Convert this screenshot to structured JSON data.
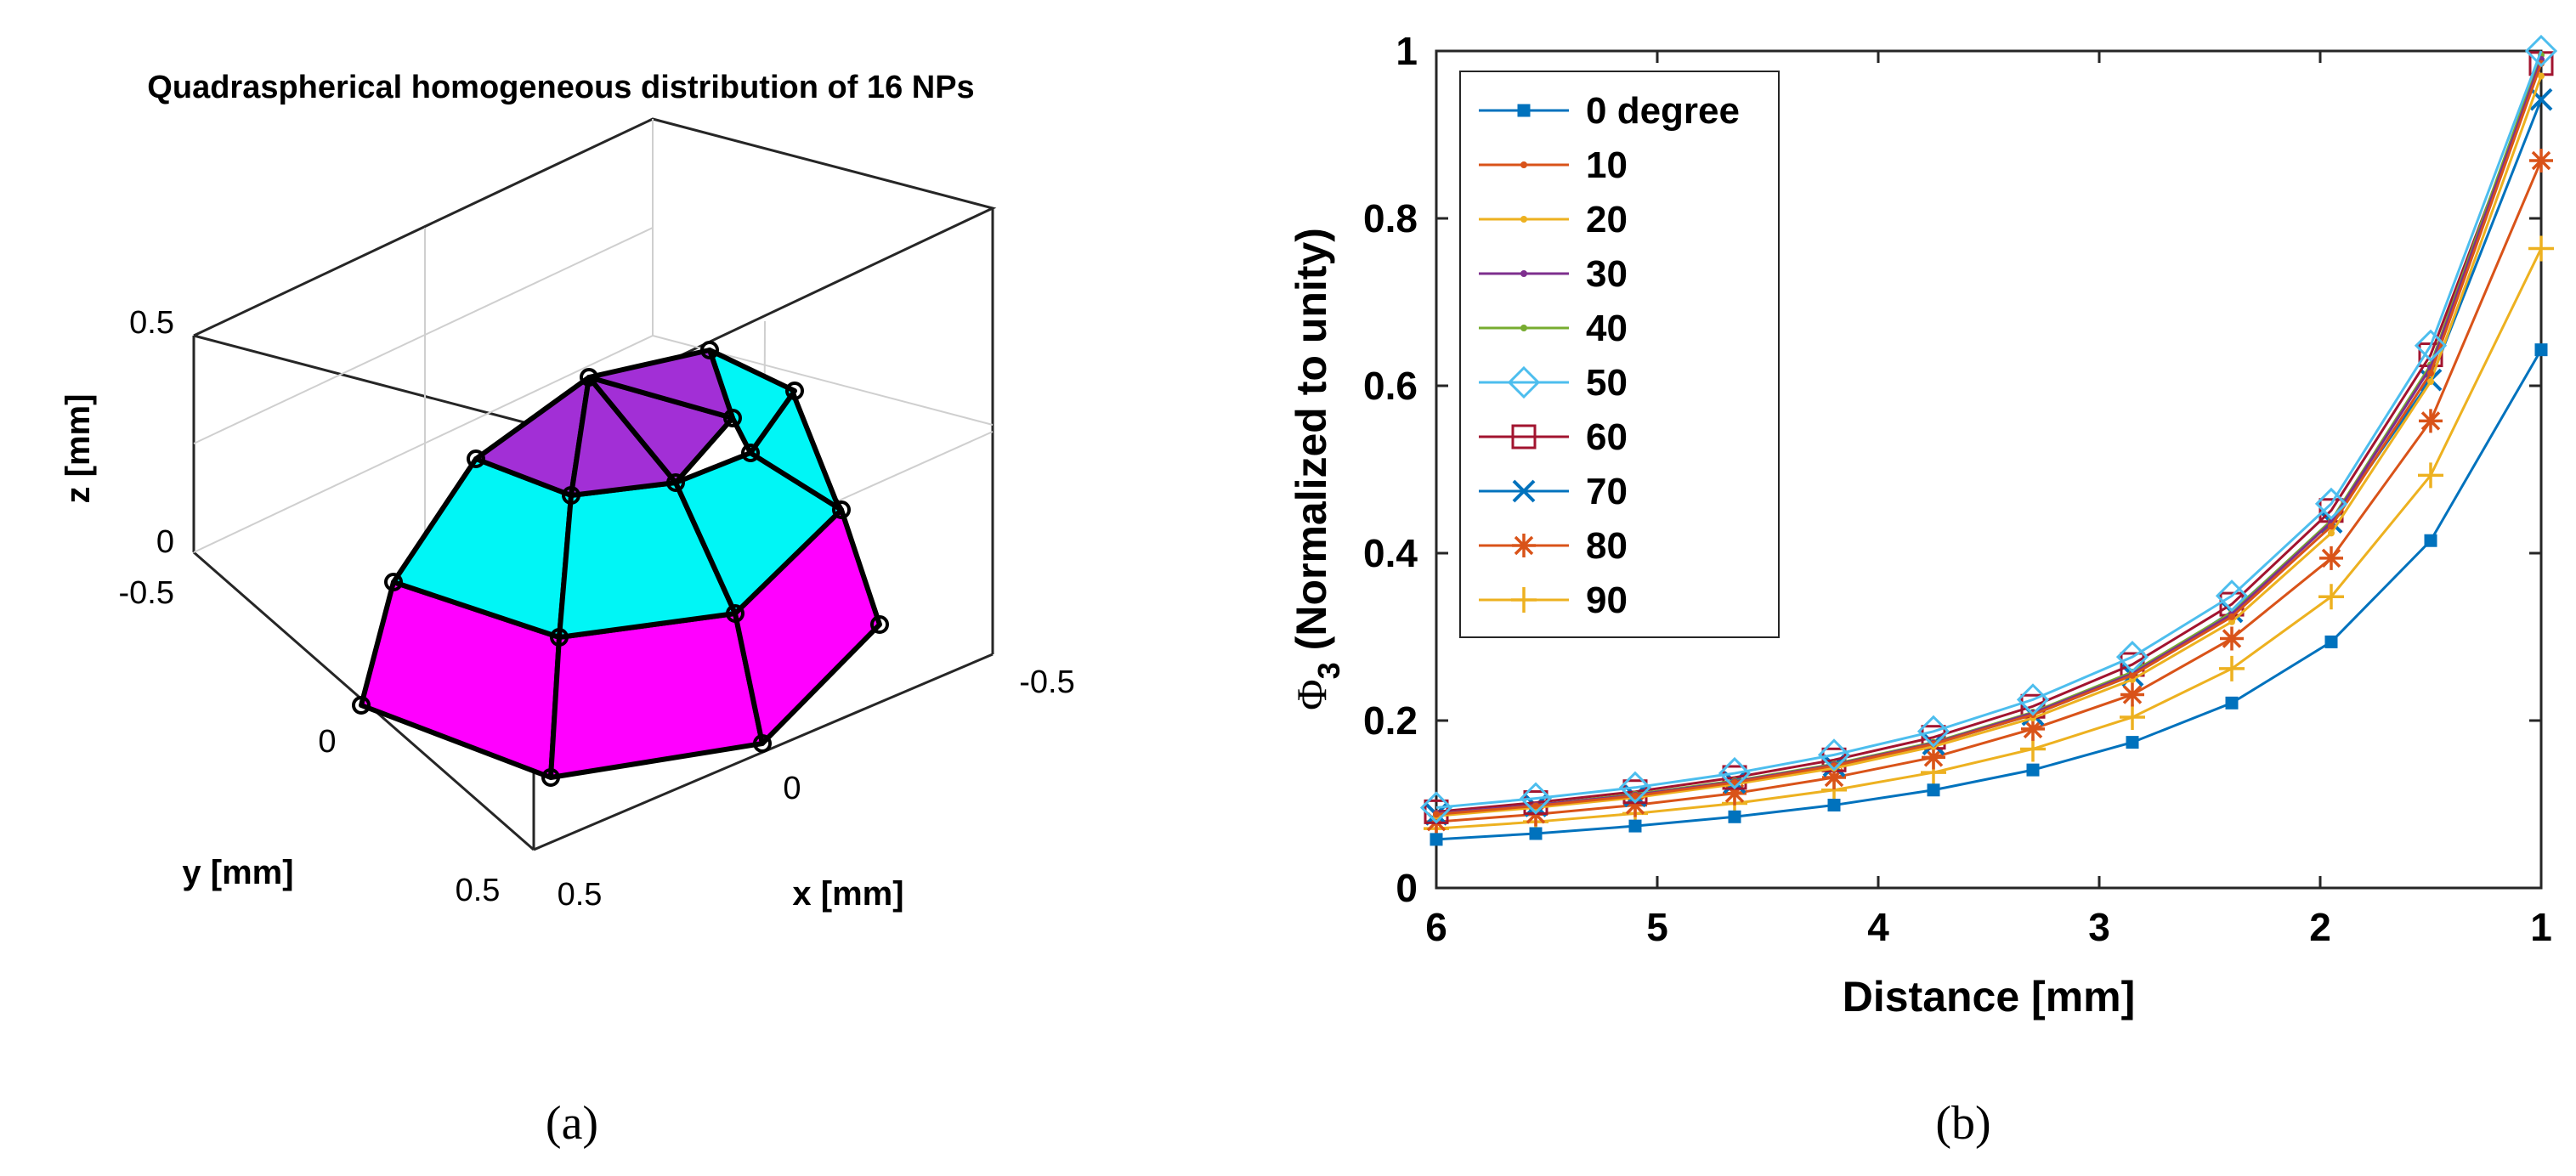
{
  "panel_a": {
    "title": "Quadraspherical homogeneous distribution of 16 NPs",
    "caption": "(a)",
    "zlabel": "z [mm]",
    "ylabel": "y [mm]",
    "xlabel": "x [mm]",
    "z_ticks": [
      "0.5",
      "0",
      "-0.5"
    ],
    "y_ticks": [
      "0",
      "0.5"
    ],
    "x_ticks": [
      "-0.5",
      "0",
      "0.5"
    ],
    "colors": {
      "top": "#a22fd6",
      "middle": "#00f6f6",
      "bottom": "#ff00ff",
      "edge": "#000000"
    }
  },
  "panel_b": {
    "caption": "(b)"
  },
  "chart_data": {
    "type": "line",
    "xlabel": "Distance [mm]",
    "ylabel_symbol": "Φ",
    "ylabel_sub": "3",
    "ylabel_rest": "(Normalized to unity)",
    "xlim": [
      6,
      1
    ],
    "ylim": [
      0,
      1
    ],
    "x_reversed": true,
    "x_ticks": [
      6,
      5,
      4,
      3,
      2,
      1
    ],
    "y_ticks": [
      0,
      0.2,
      0.4,
      0.6,
      0.8,
      1
    ],
    "y_tick_labels": [
      "0",
      "0.2",
      "0.4",
      "0.6",
      "0.8",
      "1"
    ],
    "x_tick_labels": [
      "6",
      "5",
      "4",
      "3",
      "2",
      "1"
    ],
    "legend_position": "top-left",
    "x": [
      6,
      5.55,
      5.1,
      4.65,
      4.2,
      3.75,
      3.3,
      2.85,
      2.4,
      1.95,
      1.5,
      1
    ],
    "series": [
      {
        "name": "0 degree",
        "color": "#0072bd",
        "marker": "square-filled",
        "values": [
          0.058,
          0.065,
          0.074,
          0.085,
          0.099,
          0.117,
          0.141,
          0.174,
          0.221,
          0.294,
          0.415,
          0.643
        ]
      },
      {
        "name": "10",
        "color": "#d95319",
        "marker": "dot",
        "values": [
          0.088,
          0.098,
          0.11,
          0.126,
          0.146,
          0.172,
          0.207,
          0.254,
          0.324,
          0.432,
          0.615,
          0.985
        ]
      },
      {
        "name": "20",
        "color": "#edb120",
        "marker": "dot",
        "values": [
          0.086,
          0.096,
          0.108,
          0.124,
          0.143,
          0.169,
          0.203,
          0.249,
          0.318,
          0.424,
          0.605,
          0.97
        ]
      },
      {
        "name": "30",
        "color": "#7e2f8e",
        "marker": "dot",
        "values": [
          0.089,
          0.099,
          0.111,
          0.127,
          0.147,
          0.173,
          0.209,
          0.256,
          0.327,
          0.437,
          0.622,
          0.99
        ]
      },
      {
        "name": "40",
        "color": "#77ac30",
        "marker": "dot",
        "values": [
          0.089,
          0.099,
          0.112,
          0.128,
          0.148,
          0.174,
          0.21,
          0.258,
          0.329,
          0.439,
          0.625,
          0.995
        ]
      },
      {
        "name": "50",
        "color": "#4dbeee",
        "marker": "diamond",
        "values": [
          0.096,
          0.107,
          0.12,
          0.137,
          0.159,
          0.187,
          0.225,
          0.276,
          0.349,
          0.459,
          0.648,
          1.0
        ]
      },
      {
        "name": "60",
        "color": "#a2142f",
        "marker": "square",
        "values": [
          0.091,
          0.102,
          0.115,
          0.132,
          0.153,
          0.18,
          0.217,
          0.267,
          0.339,
          0.451,
          0.637,
          0.985
        ]
      },
      {
        "name": "70",
        "color": "#0072bd",
        "marker": "x",
        "values": [
          0.088,
          0.098,
          0.11,
          0.126,
          0.146,
          0.172,
          0.207,
          0.254,
          0.33,
          0.437,
          0.607,
          0.942
        ]
      },
      {
        "name": "80",
        "color": "#d95319",
        "marker": "star",
        "values": [
          0.079,
          0.088,
          0.099,
          0.113,
          0.132,
          0.156,
          0.19,
          0.231,
          0.298,
          0.394,
          0.558,
          0.869
        ]
      },
      {
        "name": "90",
        "color": "#edb120",
        "marker": "plus",
        "values": [
          0.071,
          0.079,
          0.089,
          0.101,
          0.117,
          0.138,
          0.166,
          0.204,
          0.262,
          0.348,
          0.493,
          0.764
        ]
      }
    ]
  }
}
